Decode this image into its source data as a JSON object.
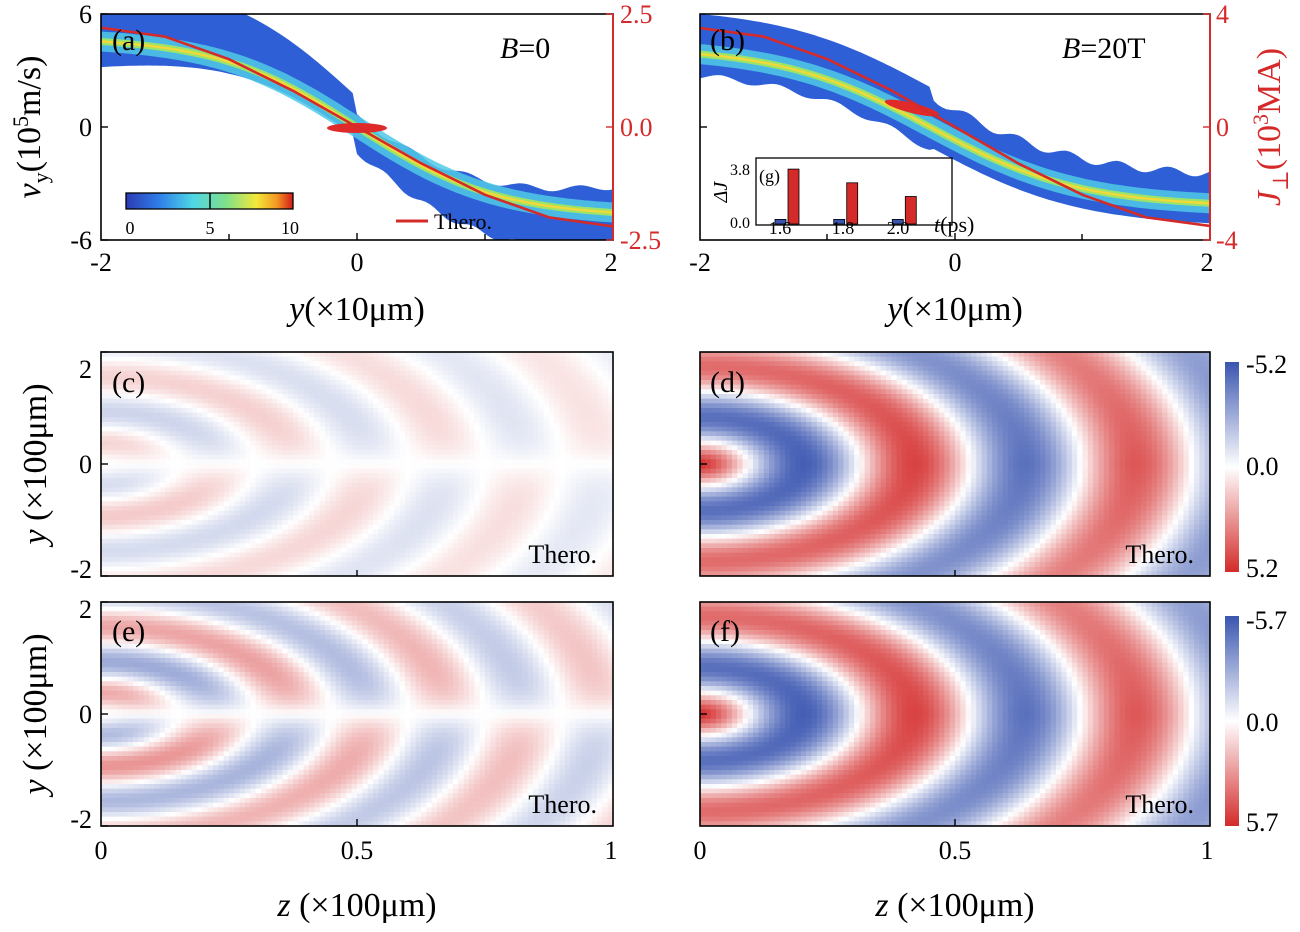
{
  "chart_data": [
    {
      "panel": "(a)",
      "type": "heatmap",
      "annotation": "B=0",
      "annotation_var": "B",
      "annotation_val": "=0",
      "xlabel_var": "y",
      "xlabel_rest": "(×10μm)",
      "ylabel_var": "v",
      "ylabel_sub": "y",
      "ylabel_rest": "(10",
      "ylabel_sup": "5",
      "ylabel_unit": "m/s)",
      "xlim": [
        -2,
        2
      ],
      "ylim": [
        -6,
        6
      ],
      "xticks": [
        "-2",
        "0",
        "2"
      ],
      "yticks": [
        "6",
        "0",
        "-6"
      ],
      "ylim_right": [
        -2.5,
        2.5
      ],
      "yticks_right": [
        "2.5",
        "0.0",
        "-2.5"
      ],
      "colorbar": {
        "range": [
          0,
          10
        ],
        "ticks": [
          "0",
          "5",
          "10"
        ]
      },
      "legend": "Thero.",
      "theory_curve": {
        "x": [
          -2,
          -1.5,
          -1,
          -0.5,
          0,
          0.5,
          1,
          1.5,
          2
        ],
        "y": [
          2.2,
          2.0,
          1.5,
          0.8,
          0,
          -0.8,
          -1.5,
          -2.0,
          -2.2
        ]
      }
    },
    {
      "panel": "(b)",
      "type": "heatmap",
      "annotation": "B=20T",
      "annotation_var": "B",
      "annotation_val": "=20T",
      "xlabel_var": "y",
      "xlabel_rest": "(×10μm)",
      "xlim": [
        -2,
        2
      ],
      "ylim": [
        -6,
        6
      ],
      "xticks": [
        "-2",
        "0",
        "2"
      ],
      "ylim_right": [
        -4,
        4
      ],
      "yticks_right": [
        "4",
        "0",
        "-4"
      ],
      "ylabel_right_var": "J",
      "ylabel_right_sub": "⊥",
      "ylabel_right_rest": "(10",
      "ylabel_right_sup": "3",
      "ylabel_right_unit": "MA)",
      "theory_curve": {
        "x": [
          -2,
          -1.5,
          -1,
          -0.5,
          0,
          0.5,
          1,
          1.5,
          2
        ],
        "y": [
          3.5,
          3.2,
          2.4,
          1.3,
          0,
          -1.3,
          -2.4,
          -3.2,
          -3.5
        ]
      }
    },
    {
      "panel": "(g)",
      "type": "bar",
      "ylabel": "ΔJ",
      "xlabel_var": "t",
      "xlabel_rest": "(ps)",
      "categories": [
        "1.6",
        "1.8",
        "2.0"
      ],
      "ylim": [
        0,
        3.8
      ],
      "yticks": [
        "3.8",
        "0.0"
      ],
      "series": [
        {
          "color": "#3a55b0",
          "values": [
            0.3,
            0.3,
            0.3
          ]
        },
        {
          "color": "#d42a2a",
          "values": [
            3.6,
            2.7,
            1.8
          ]
        }
      ]
    },
    {
      "panel": "(c)",
      "type": "heatmap",
      "label": "Thero.",
      "xlim": [
        0,
        1
      ],
      "ylim": [
        -2,
        2
      ],
      "yticks": [
        "2",
        "0",
        "-2"
      ],
      "ylabel_var": "y",
      "ylabel_rest": " (×100μm)",
      "amplitude": 0.35
    },
    {
      "panel": "(d)",
      "type": "heatmap",
      "label": "Thero.",
      "xlim": [
        0,
        1
      ],
      "ylim": [
        -2,
        2
      ],
      "amplitude": 1.0,
      "colorbar": {
        "range": [
          -5.2,
          5.2
        ],
        "ticks": [
          "-5.2",
          "0.0",
          "5.2"
        ]
      }
    },
    {
      "panel": "(e)",
      "type": "heatmap",
      "label": "Thero.",
      "xlim": [
        0,
        1
      ],
      "ylim": [
        -2,
        2
      ],
      "xticks": [
        "0",
        "0.5",
        "1"
      ],
      "yticks": [
        "2",
        "0",
        "-2"
      ],
      "ylabel_var": "y",
      "ylabel_rest": " (×100μm)",
      "xlabel_var": "z",
      "xlabel_rest": " (×100μm)",
      "amplitude": 0.7
    },
    {
      "panel": "(f)",
      "type": "heatmap",
      "label": "Thero.",
      "xlim": [
        0,
        1
      ],
      "ylim": [
        -2,
        2
      ],
      "xticks": [
        "0",
        "0.5",
        "1"
      ],
      "xlabel_var": "z",
      "xlabel_rest": " (×100μm)",
      "amplitude": 1.0,
      "colorbar": {
        "range": [
          -5.7,
          5.7
        ],
        "ticks": [
          "-5.7",
          "0.0",
          "5.7"
        ]
      }
    }
  ]
}
